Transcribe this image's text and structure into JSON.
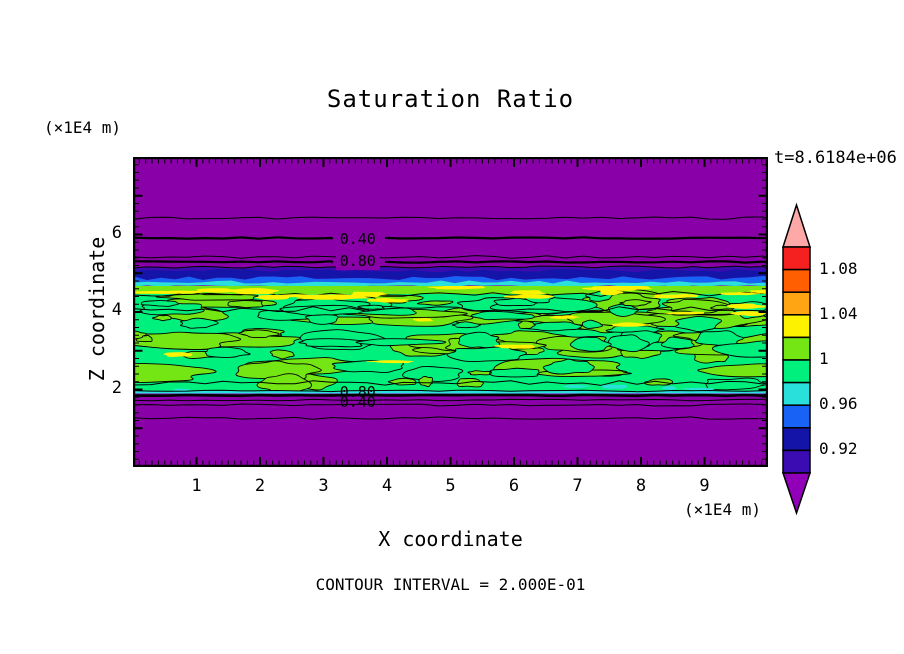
{
  "title": "Saturation Ratio",
  "header": {
    "time_label": "t=8.6184e+06"
  },
  "axes": {
    "x": {
      "label": "X coordinate",
      "unit": "(×1E4 m)",
      "ticks": [
        "1",
        "2",
        "3",
        "4",
        "5",
        "6",
        "7",
        "8",
        "9"
      ],
      "range": [
        0,
        10
      ]
    },
    "z": {
      "label": "Z coordinate",
      "unit": "(×1E4 m)",
      "ticks": [
        "2",
        "4",
        "6"
      ],
      "range": [
        0,
        8
      ]
    }
  },
  "footer": {
    "contour_interval": "CONTOUR INTERVAL = 2.000E-01"
  },
  "colors": {
    "background": "#ffffff",
    "field_purple": "#8a00a8",
    "indigo": "#3c0cb3",
    "navy": "#1414a8",
    "blue": "#1863f5",
    "cyan": "#29e0db",
    "spring_green": "#00f07d",
    "chartreuse": "#74e613",
    "yellow": "#fdf200",
    "line": "#000000"
  },
  "colorbar": {
    "over_color": "#ffa8a8",
    "under_color": "#9100b8",
    "segments": [
      {
        "value_range": [
          1.08,
          1.1
        ],
        "color": "#f52020"
      },
      {
        "value_range": [
          1.06,
          1.08
        ],
        "color": "#ff5f00"
      },
      {
        "value_range": [
          1.04,
          1.06
        ],
        "color": "#ffa513"
      },
      {
        "value_range": [
          1.02,
          1.04
        ],
        "color": "#fdf200"
      },
      {
        "value_range": [
          1.0,
          1.02
        ],
        "color": "#74e613"
      },
      {
        "value_range": [
          0.98,
          1.0
        ],
        "color": "#00f07d"
      },
      {
        "value_range": [
          0.96,
          0.98
        ],
        "color": "#29e0db"
      },
      {
        "value_range": [
          0.94,
          0.96
        ],
        "color": "#1863f5"
      },
      {
        "value_range": [
          0.92,
          0.94
        ],
        "color": "#1414a8"
      },
      {
        "value_range": [
          0.9,
          0.92
        ],
        "color": "#3c0cb3"
      }
    ],
    "labels": [
      {
        "text": "1.08",
        "value": 1.08
      },
      {
        "text": "1.04",
        "value": 1.04
      },
      {
        "text": "1",
        "value": 1.0
      },
      {
        "text": "0.96",
        "value": 0.96
      },
      {
        "text": "0.92",
        "value": 0.92
      }
    ]
  },
  "chart_data": {
    "type": "heatmap",
    "title": "Saturation Ratio",
    "xlabel": "X coordinate",
    "ylabel": "Z coordinate",
    "x_unit": "x1E4 m",
    "z_unit": "x1E4 m",
    "time": "t=8.6184e+06",
    "xlim": [
      0,
      10
    ],
    "ylim": [
      0,
      8
    ],
    "xticks": [
      1,
      2,
      3,
      4,
      5,
      6,
      7,
      8,
      9
    ],
    "zticks": [
      2,
      4,
      6
    ],
    "contour_interval": 0.2,
    "colorbar_boundaries": [
      1.1,
      1.08,
      1.06,
      1.04,
      1.02,
      1.0,
      0.98,
      0.96,
      0.94,
      0.92,
      0.9
    ],
    "layers": [
      {
        "z_range": [
          5.3,
          8.0
        ],
        "saturation_ratio": "< 0.40",
        "fill": "purple field with 0.40 and 0.80 contour lines at z≈5.9 and z≈5.3"
      },
      {
        "z_range": [
          5.05,
          5.3
        ],
        "saturation_ratio": "0.80 to 0.92",
        "fill": "purple / indigo"
      },
      {
        "z_range": [
          4.85,
          5.05
        ],
        "saturation_ratio": "0.92 to 0.96",
        "fill": "navy / blue band"
      },
      {
        "z_range": [
          4.7,
          4.85
        ],
        "saturation_ratio": "0.96 to 0.98",
        "fill": "cyan strip"
      },
      {
        "z_range": [
          1.96,
          4.7
        ],
        "saturation_ratio": "0.98 to 1.04",
        "fill": "mottled spring-green / chartreuse band with yellow streaks and 1.0 contour squiggles"
      },
      {
        "z_range": [
          1.55,
          1.96
        ],
        "saturation_ratio": "0.80 to 0.40",
        "fill": "purple with stacked contour lines"
      },
      {
        "z_range": [
          0.0,
          1.55
        ],
        "saturation_ratio": "< 0.40",
        "fill": "purple"
      }
    ],
    "contour_line_labels": [
      {
        "text": "0.40",
        "x": 3.54,
        "z": 5.86,
        "masked": true
      },
      {
        "text": "0.80",
        "x": 3.54,
        "z": 5.29,
        "masked": true
      },
      {
        "text": "0.80",
        "x": 3.54,
        "z": 1.91,
        "masked": false
      },
      {
        "text": "0.40",
        "x": 3.54,
        "z": 1.65,
        "masked": false
      }
    ]
  }
}
